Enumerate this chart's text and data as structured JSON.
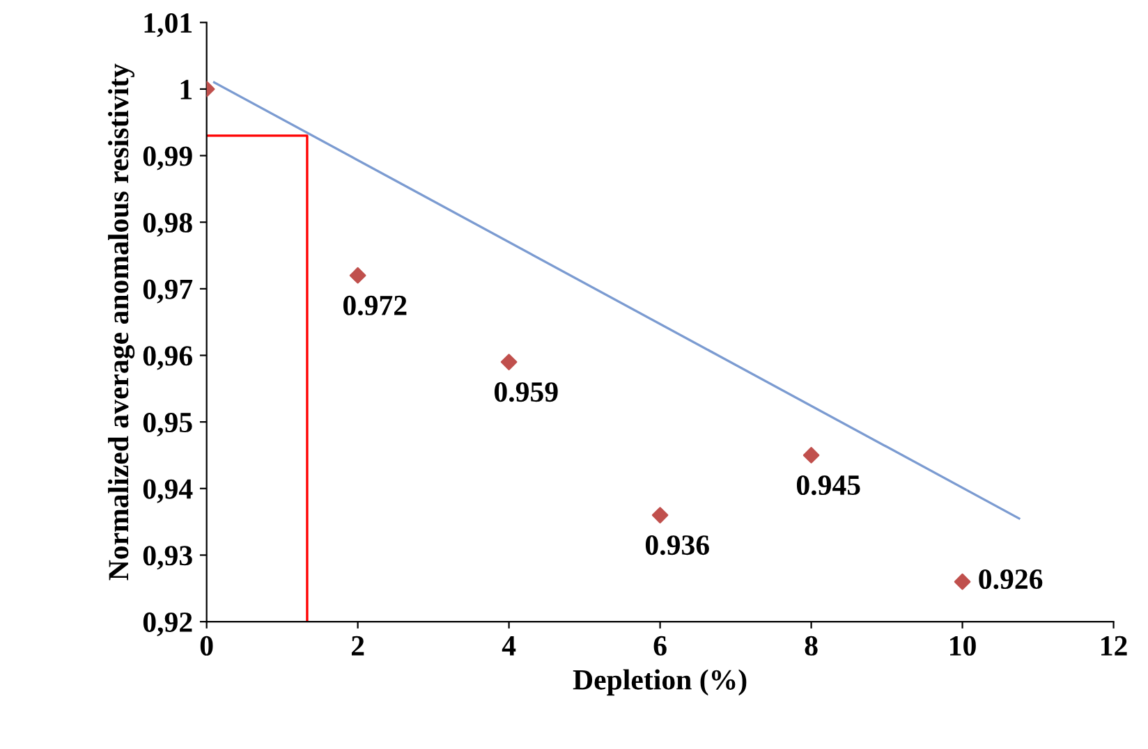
{
  "chart_data": {
    "type": "scatter",
    "xlabel": "Depletion (%)",
    "ylabel": "Normalized average anomalous resistivity",
    "xlim": [
      0,
      12
    ],
    "xticks": [
      0,
      2,
      4,
      6,
      8,
      10,
      12
    ],
    "ylim": [
      0.92,
      1.01
    ],
    "yticks": [
      {
        "value": 0.92,
        "label": "0,92"
      },
      {
        "value": 0.93,
        "label": "0,93"
      },
      {
        "value": 0.94,
        "label": "0,94"
      },
      {
        "value": 0.95,
        "label": "0,95"
      },
      {
        "value": 0.96,
        "label": "0,96"
      },
      {
        "value": 0.97,
        "label": "0,97"
      },
      {
        "value": 0.98,
        "label": "0,98"
      },
      {
        "value": 0.99,
        "label": "0,99"
      },
      {
        "value": 1,
        "label": "1"
      },
      {
        "value": 1.01,
        "label": "1,01"
      }
    ],
    "grid": false,
    "legend": false,
    "series": [
      {
        "color": "#c0504d",
        "marker": "diamond",
        "x": [
          0,
          2,
          4,
          6,
          8,
          10
        ],
        "values": [
          1,
          0.972,
          0.959,
          0.936,
          0.945,
          0.926
        ],
        "value_labels": [
          null,
          "0.972",
          "0.959",
          "0.936",
          "0.945",
          "0.926"
        ]
      },
      {
        "type": "line",
        "color": "#7b9bd1",
        "marker": "none",
        "line_style": "solid",
        "x": [
          0.1,
          10.75
        ],
        "values": [
          1.001,
          0.9355
        ]
      },
      {
        "type": "line",
        "color": "#ff0000",
        "marker": "none",
        "line_style": "solid",
        "x": [
          0,
          1.33,
          1.33
        ],
        "values": [
          0.993,
          0.993,
          0.92
        ]
      }
    ]
  }
}
